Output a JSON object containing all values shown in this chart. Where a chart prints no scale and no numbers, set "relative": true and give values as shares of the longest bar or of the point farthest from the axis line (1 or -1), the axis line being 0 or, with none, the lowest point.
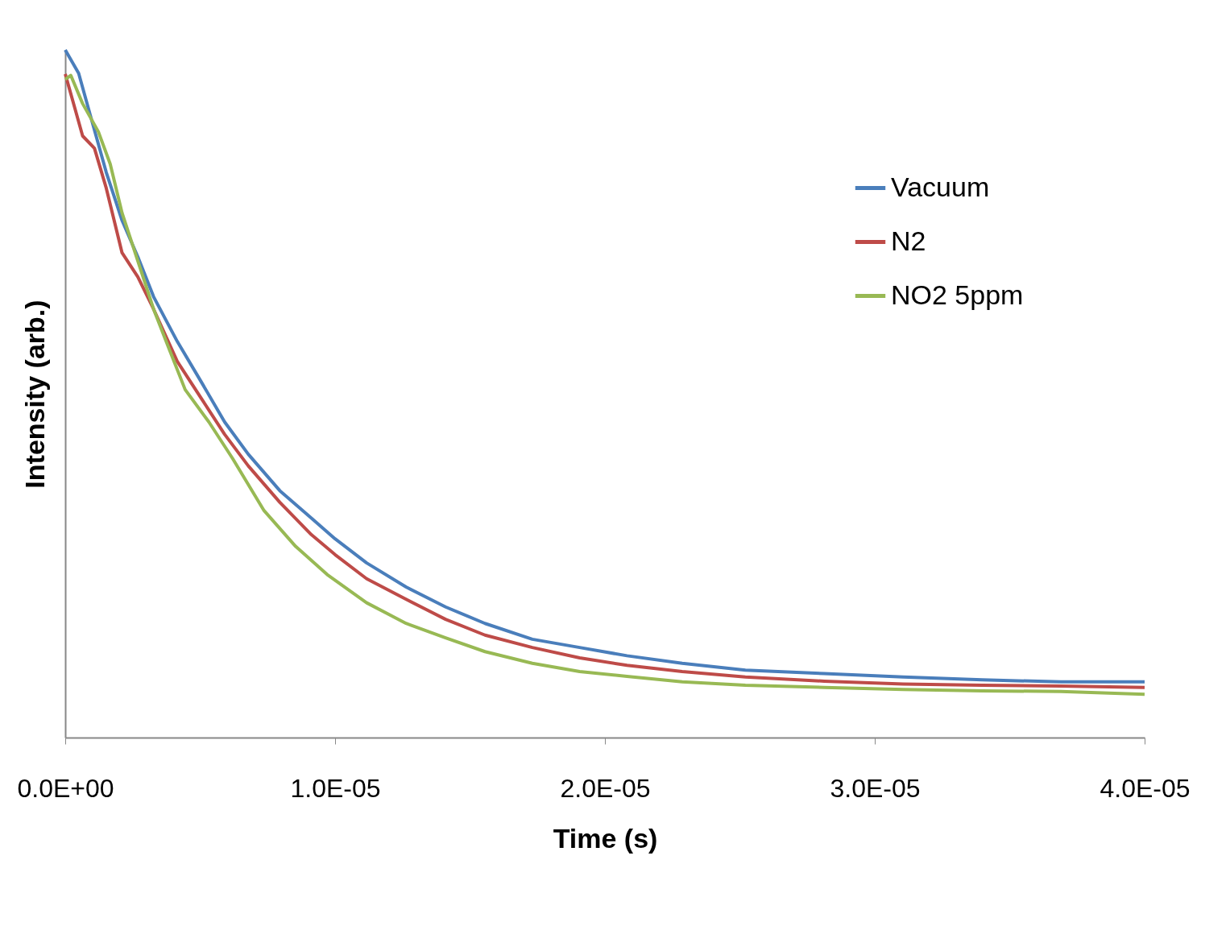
{
  "chart_data": {
    "type": "line",
    "relative": true,
    "xlabel": "Time (s)",
    "ylabel": "Intensity (arb.)",
    "xlim": [
      0,
      4e-05
    ],
    "xticks": [
      {
        "value": 0,
        "label": "0.0E+00"
      },
      {
        "value": 1e-05,
        "label": "1.0E-05"
      },
      {
        "value": 2e-05,
        "label": "2.0E-05"
      },
      {
        "value": 3e-05,
        "label": "3.0E-05"
      },
      {
        "value": 4e-05,
        "label": "4.0E-05"
      }
    ],
    "grid": false,
    "legend": "top right",
    "marker": "none",
    "line_style": "solid",
    "series": [
      {
        "name": "Vacuum",
        "color": "#4a7ebb",
        "x": [
          0,
          4.97e-07,
          9.36e-07,
          1.52e-06,
          2.105e-06,
          2.69e-06,
          3.275e-06,
          4.152e-06,
          5.029e-06,
          5.906e-06,
          6.784e-06,
          7.953e-06,
          9.123e-06,
          1e-05,
          1.117e-05,
          1.2632e-05,
          1.4094e-05,
          1.5556e-05,
          1.731e-05,
          1.9064e-05,
          2.0819e-05,
          2.2865e-05,
          2.5205e-05,
          2.8129e-05,
          3.1053e-05,
          3.3977e-05,
          3.6901e-05,
          4e-05
        ],
        "values": [
          1.0,
          0.966,
          0.904,
          0.822,
          0.752,
          0.699,
          0.641,
          0.576,
          0.518,
          0.459,
          0.412,
          0.359,
          0.319,
          0.289,
          0.254,
          0.219,
          0.19,
          0.166,
          0.143,
          0.131,
          0.119,
          0.108,
          0.098,
          0.093,
          0.088,
          0.084,
          0.081,
          0.081
        ]
      },
      {
        "name": "N2",
        "color": "#be4b48",
        "x": [
          0,
          3.51e-07,
          6.43e-07,
          1.082e-06,
          1.52e-06,
          2.105e-06,
          2.69e-06,
          3.275e-06,
          4.152e-06,
          5.029e-06,
          5.906e-06,
          6.784e-06,
          7.953e-06,
          9.123e-06,
          1e-05,
          1.117e-05,
          1.2632e-05,
          1.4094e-05,
          1.5556e-05,
          1.731e-05,
          1.9064e-05,
          2.0819e-05,
          2.2865e-05,
          2.5205e-05,
          2.8129e-05,
          3.1053e-05,
          3.3977e-05,
          3.6901e-05,
          4e-05
        ],
        "values": [
          0.965,
          0.916,
          0.875,
          0.857,
          0.799,
          0.705,
          0.67,
          0.623,
          0.547,
          0.494,
          0.441,
          0.395,
          0.342,
          0.295,
          0.266,
          0.231,
          0.201,
          0.172,
          0.149,
          0.131,
          0.116,
          0.105,
          0.096,
          0.088,
          0.082,
          0.078,
          0.076,
          0.075,
          0.073
        ]
      },
      {
        "name": "NO2 5ppm",
        "color": "#98b954",
        "x": [
          0,
          2.05e-07,
          6.43e-07,
          1.228e-06,
          1.667e-06,
          2.105e-06,
          2.69e-06,
          3.275e-06,
          3.86e-06,
          4.444e-06,
          5.322e-06,
          6.199e-06,
          7.368e-06,
          8.538e-06,
          9.708e-06,
          1.117e-05,
          1.2632e-05,
          1.4094e-05,
          1.5556e-05,
          1.731e-05,
          1.9064e-05,
          2.0819e-05,
          2.2865e-05,
          2.5205e-05,
          2.8129e-05,
          3.1053e-05,
          3.3977e-05,
          3.6901e-05,
          4e-05
        ],
        "values": [
          0.957,
          0.963,
          0.922,
          0.881,
          0.834,
          0.763,
          0.693,
          0.623,
          0.564,
          0.506,
          0.459,
          0.406,
          0.33,
          0.278,
          0.237,
          0.196,
          0.166,
          0.145,
          0.125,
          0.108,
          0.096,
          0.089,
          0.081,
          0.076,
          0.073,
          0.07,
          0.068,
          0.067,
          0.063
        ]
      }
    ]
  }
}
